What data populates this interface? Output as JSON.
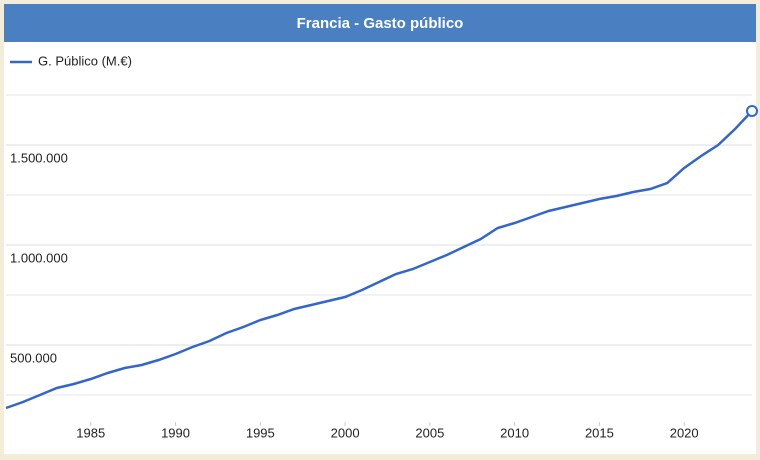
{
  "chart_data": {
    "type": "line",
    "title": "Francia - Gasto público",
    "x": [
      1980,
      1981,
      1982,
      1983,
      1984,
      1985,
      1986,
      1987,
      1988,
      1989,
      1990,
      1991,
      1992,
      1993,
      1994,
      1995,
      1996,
      1997,
      1998,
      1999,
      2000,
      2001,
      2002,
      2003,
      2004,
      2005,
      2006,
      2007,
      2008,
      2009,
      2010,
      2011,
      2012,
      2013,
      2014,
      2015,
      2016,
      2017,
      2018,
      2019,
      2020,
      2021,
      2022,
      2023,
      2024
    ],
    "series": [
      {
        "name": "G. Público (M.€)",
        "color": "#3366cc",
        "values": [
          185000,
          215000,
          250000,
          285000,
          305000,
          330000,
          360000,
          385000,
          400000,
          425000,
          455000,
          490000,
          520000,
          560000,
          590000,
          625000,
          650000,
          680000,
          700000,
          720000,
          740000,
          775000,
          815000,
          855000,
          880000,
          915000,
          950000,
          990000,
          1030000,
          1085000,
          1110000,
          1140000,
          1170000,
          1190000,
          1210000,
          1230000,
          1245000,
          1265000,
          1280000,
          1310000,
          1385000,
          1445000,
          1500000,
          1580000,
          1670000
        ]
      }
    ],
    "xlim": [
      1980,
      2024
    ],
    "xticks": [
      1985,
      1990,
      1995,
      2000,
      2005,
      2010,
      2015,
      2020
    ],
    "ylim": [
      115000,
      1825000
    ],
    "yticks": [
      {
        "value": 500000,
        "label": "500.000"
      },
      {
        "value": 1000000,
        "label": "1.000.000"
      },
      {
        "value": 1500000,
        "label": "1.500.000"
      }
    ],
    "minor_yticks": [
      250000,
      750000,
      1250000,
      1750000
    ],
    "grid": true
  }
}
